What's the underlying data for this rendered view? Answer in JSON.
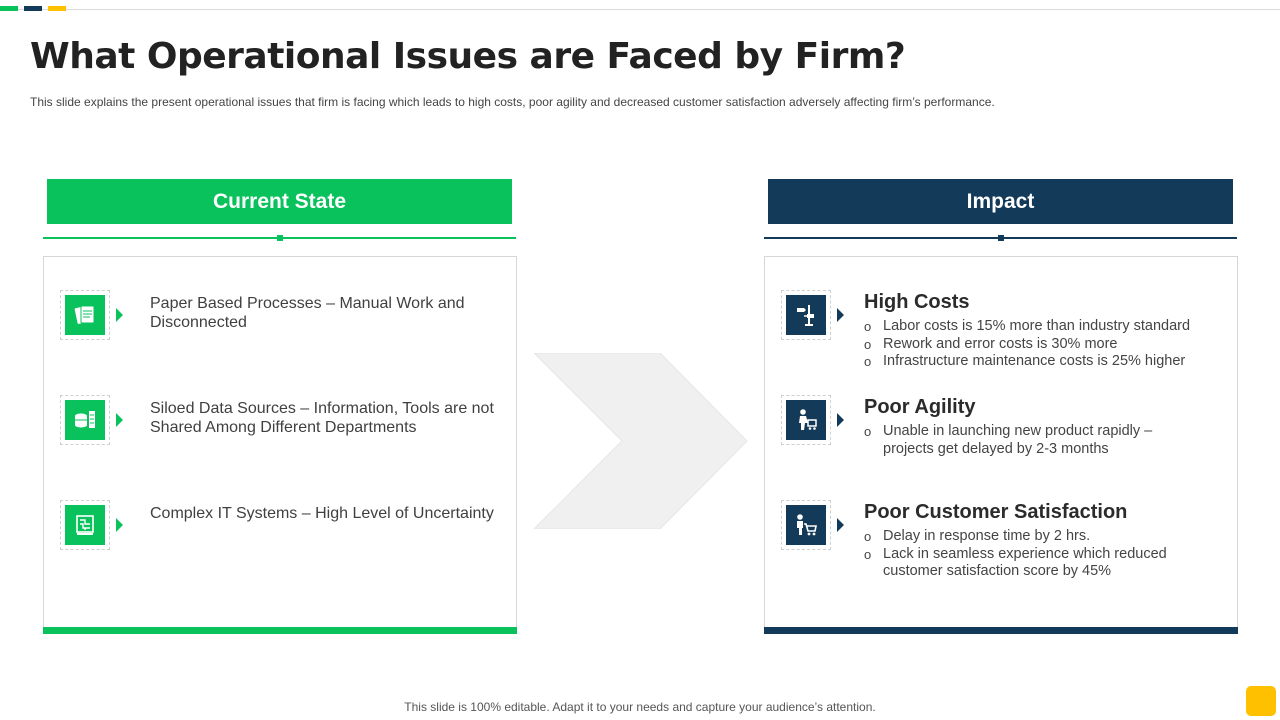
{
  "colors": {
    "green": "#0ac25c",
    "navy": "#143a5a",
    "yellow": "#ffc000",
    "chevron": "#f0f0f0"
  },
  "title": "What Operational Issues are Faced by Firm?",
  "subtitle": "This slide explains the present operational  issues that firm is facing which leads to high costs, poor agility and decreased customer satisfaction adversely  affecting firm’s performance.",
  "current_state": {
    "header": "Current State",
    "items": [
      {
        "icon": "documents-icon",
        "text": "Paper Based Processes – Manual  Work and Disconnected"
      },
      {
        "icon": "database-server-icon",
        "text": "Siloed Data Sources – Information,  Tools are not Shared Among Different Departments"
      },
      {
        "icon": "circuit-chip-icon",
        "text": "Complex IT Systems  –  High Level of Uncertainty"
      }
    ]
  },
  "impact": {
    "header": "Impact",
    "items": [
      {
        "icon": "direction-signpost-icon",
        "title": "High Costs",
        "bullets": [
          "Labor costs is 15% more than industry standard",
          "Rework and error costs is 30% more",
          "Infrastructure maintenance costs is 25% higher"
        ]
      },
      {
        "icon": "person-cart-icon",
        "title": "Poor Agility",
        "bullets": [
          "Unable  in launching new product rapidly – projects get delayed by 2-3 months"
        ]
      },
      {
        "icon": "shopper-cart-icon",
        "title": "Poor Customer Satisfaction",
        "bullets": [
          "Delay in response time by 2 hrs.",
          "Lack in seamless experience which reduced customer satisfaction score by 45%"
        ]
      }
    ]
  },
  "footer": "This slide is 100% editable. Adapt it to your needs and capture your audience’s attention."
}
